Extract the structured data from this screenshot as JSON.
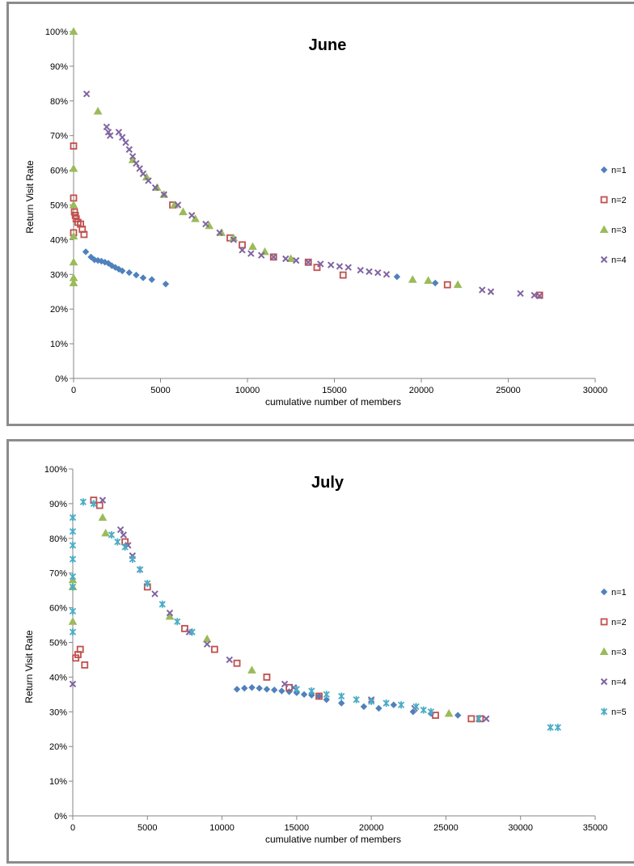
{
  "chart_data": [
    {
      "type": "scatter",
      "title": "June",
      "xlabel": "cumulative  number  of  members",
      "ylabel": "Return Visit Rate",
      "xlim": [
        0,
        30000
      ],
      "ylim": [
        0,
        100
      ],
      "x_ticks": [
        "0",
        "5000",
        "10000",
        "15000",
        "20000",
        "25000",
        "30000"
      ],
      "y_ticks": [
        "0%",
        "10%",
        "20%",
        "30%",
        "40%",
        "50%",
        "60%",
        "70%",
        "80%",
        "90%",
        "100%"
      ],
      "grid": false,
      "legend_position": "right",
      "series": [
        {
          "name": "n=1",
          "color": "#4f81bd",
          "marker": "diamond",
          "points": [
            [
              700,
              36.5
            ],
            [
              1000,
              35
            ],
            [
              1200,
              34.2
            ],
            [
              1400,
              34
            ],
            [
              1600,
              33.8
            ],
            [
              1800,
              33.5
            ],
            [
              2000,
              33.2
            ],
            [
              2200,
              32.5
            ],
            [
              2400,
              32
            ],
            [
              2600,
              31.5
            ],
            [
              2800,
              31
            ],
            [
              3200,
              30.5
            ],
            [
              3600,
              29.8
            ],
            [
              4000,
              29
            ],
            [
              4500,
              28.5
            ],
            [
              5300,
              27.2
            ],
            [
              18600,
              29.3
            ],
            [
              20800,
              27.5
            ]
          ]
        },
        {
          "name": "n=2",
          "color": "#c0504d",
          "marker": "square",
          "points": [
            [
              0,
              67
            ],
            [
              0,
              52
            ],
            [
              50,
              48
            ],
            [
              100,
              47
            ],
            [
              150,
              46
            ],
            [
              250,
              45
            ],
            [
              400,
              44.5
            ],
            [
              500,
              43
            ],
            [
              0,
              42
            ],
            [
              600,
              41.5
            ],
            [
              5700,
              50
            ],
            [
              9000,
              40.5
            ],
            [
              9700,
              38.5
            ],
            [
              11500,
              35
            ],
            [
              13500,
              33.5
            ],
            [
              14000,
              32
            ],
            [
              15500,
              29.8
            ],
            [
              21500,
              27
            ],
            [
              26800,
              24
            ]
          ]
        },
        {
          "name": "n=3",
          "color": "#9bbb59",
          "marker": "triangle",
          "points": [
            [
              0,
              100
            ],
            [
              0,
              60.5
            ],
            [
              0,
              50
            ],
            [
              0,
              41
            ],
            [
              0,
              33.5
            ],
            [
              0,
              29
            ],
            [
              0,
              27.5
            ],
            [
              1400,
              77
            ],
            [
              3400,
              63
            ],
            [
              4200,
              58
            ],
            [
              4800,
              55
            ],
            [
              5200,
              53
            ],
            [
              5800,
              50
            ],
            [
              6300,
              48
            ],
            [
              7000,
              46
            ],
            [
              7800,
              44
            ],
            [
              8500,
              42
            ],
            [
              9200,
              40.5
            ],
            [
              10300,
              38
            ],
            [
              11000,
              36.5
            ],
            [
              12500,
              34.5
            ],
            [
              19500,
              28.5
            ],
            [
              20400,
              28.2
            ],
            [
              22100,
              27
            ]
          ]
        },
        {
          "name": "n=4",
          "color": "#8064a2",
          "marker": "x",
          "points": [
            [
              750,
              82
            ],
            [
              1900,
              72.5
            ],
            [
              2000,
              71
            ],
            [
              2100,
              70
            ],
            [
              2600,
              71
            ],
            [
              2800,
              69.5
            ],
            [
              3000,
              68
            ],
            [
              3200,
              66
            ],
            [
              3400,
              64
            ],
            [
              3600,
              62
            ],
            [
              3800,
              60.5
            ],
            [
              4000,
              59
            ],
            [
              4300,
              57
            ],
            [
              4700,
              55
            ],
            [
              5200,
              53
            ],
            [
              6000,
              50
            ],
            [
              6800,
              47
            ],
            [
              7600,
              44.5
            ],
            [
              8400,
              42
            ],
            [
              9200,
              40
            ],
            [
              9700,
              37
            ],
            [
              10200,
              36
            ],
            [
              10800,
              35.5
            ],
            [
              11500,
              35
            ],
            [
              12200,
              34.5
            ],
            [
              12800,
              34
            ],
            [
              13500,
              33.5
            ],
            [
              14200,
              33
            ],
            [
              14800,
              32.7
            ],
            [
              15300,
              32.3
            ],
            [
              15800,
              32
            ],
            [
              16500,
              31.2
            ],
            [
              17000,
              30.8
            ],
            [
              17500,
              30.5
            ],
            [
              18000,
              30
            ],
            [
              23500,
              25.5
            ],
            [
              24000,
              25
            ],
            [
              25700,
              24.5
            ],
            [
              26500,
              24
            ],
            [
              26800,
              23.8
            ]
          ]
        }
      ]
    },
    {
      "type": "scatter",
      "title": "July",
      "xlabel": "cumulative  number  of  members",
      "ylabel": "Return Visit Rate",
      "xlim": [
        0,
        35000
      ],
      "ylim": [
        0,
        100
      ],
      "x_ticks": [
        "0",
        "5000",
        "10000",
        "15000",
        "20000",
        "25000",
        "30000",
        "35000"
      ],
      "y_ticks": [
        "0%",
        "10%",
        "20%",
        "30%",
        "40%",
        "50%",
        "60%",
        "70%",
        "80%",
        "90%",
        "100%"
      ],
      "grid": false,
      "legend_position": "right",
      "series": [
        {
          "name": "n=1",
          "color": "#4f81bd",
          "marker": "diamond",
          "points": [
            [
              11000,
              36.5
            ],
            [
              11500,
              36.8
            ],
            [
              12000,
              37
            ],
            [
              12500,
              36.8
            ],
            [
              13000,
              36.5
            ],
            [
              13500,
              36.3
            ],
            [
              14000,
              36
            ],
            [
              14500,
              35.8
            ],
            [
              15000,
              35.5
            ],
            [
              15500,
              35
            ],
            [
              16000,
              34.8
            ],
            [
              16500,
              34.5
            ],
            [
              17000,
              33.5
            ],
            [
              18000,
              32.5
            ],
            [
              19500,
              31.5
            ],
            [
              20500,
              31
            ],
            [
              21500,
              32
            ],
            [
              22800,
              30
            ],
            [
              24000,
              29.5
            ],
            [
              25800,
              29
            ]
          ]
        },
        {
          "name": "n=2",
          "color": "#c0504d",
          "marker": "square",
          "points": [
            [
              200,
              45.5
            ],
            [
              350,
              46.5
            ],
            [
              500,
              48
            ],
            [
              800,
              43.5
            ],
            [
              1400,
              91
            ],
            [
              1800,
              89.5
            ],
            [
              3500,
              79
            ],
            [
              5000,
              66
            ],
            [
              7500,
              54
            ],
            [
              9500,
              48
            ],
            [
              11000,
              44
            ],
            [
              13000,
              40
            ],
            [
              14500,
              37
            ],
            [
              16500,
              34.5
            ],
            [
              24300,
              29
            ],
            [
              26700,
              28
            ],
            [
              27300,
              28
            ]
          ]
        },
        {
          "name": "n=3",
          "color": "#9bbb59",
          "marker": "triangle",
          "points": [
            [
              0,
              68
            ],
            [
              0,
              66
            ],
            [
              0,
              56
            ],
            [
              2000,
              86
            ],
            [
              2200,
              81.5
            ],
            [
              6500,
              57.5
            ],
            [
              9000,
              51
            ],
            [
              12000,
              42
            ],
            [
              25200,
              29.5
            ]
          ]
        },
        {
          "name": "n=4",
          "color": "#8064a2",
          "marker": "x",
          "points": [
            [
              0,
              38
            ],
            [
              2000,
              91
            ],
            [
              3200,
              82.5
            ],
            [
              3400,
              81
            ],
            [
              3700,
              78
            ],
            [
              4000,
              75
            ],
            [
              4500,
              71
            ],
            [
              5500,
              64
            ],
            [
              6500,
              58.5
            ],
            [
              7800,
              53
            ],
            [
              9000,
              49.5
            ],
            [
              10500,
              45
            ],
            [
              14200,
              38
            ],
            [
              14800,
              37
            ],
            [
              20000,
              33.5
            ],
            [
              22900,
              31
            ],
            [
              27700,
              28
            ]
          ]
        },
        {
          "name": "n=5",
          "color": "#4bacc6",
          "marker": "star",
          "points": [
            [
              0,
              86
            ],
            [
              0,
              82
            ],
            [
              0,
              78
            ],
            [
              0,
              74
            ],
            [
              0,
              69
            ],
            [
              0,
              66
            ],
            [
              0,
              59
            ],
            [
              0,
              53
            ],
            [
              700,
              90.5
            ],
            [
              1400,
              90
            ],
            [
              2600,
              81
            ],
            [
              3000,
              79
            ],
            [
              3500,
              77.5
            ],
            [
              4000,
              74
            ],
            [
              4500,
              71
            ],
            [
              5000,
              67
            ],
            [
              6000,
              61
            ],
            [
              7000,
              56
            ],
            [
              8000,
              53
            ],
            [
              15000,
              36.5
            ],
            [
              16000,
              36
            ],
            [
              17000,
              35
            ],
            [
              18000,
              34.5
            ],
            [
              19000,
              33.5
            ],
            [
              20000,
              33
            ],
            [
              21000,
              32.5
            ],
            [
              22000,
              32
            ],
            [
              23000,
              31.5
            ],
            [
              23500,
              30.5
            ],
            [
              24000,
              30
            ],
            [
              27200,
              28
            ],
            [
              32000,
              25.5
            ],
            [
              32500,
              25.5
            ]
          ]
        }
      ]
    }
  ]
}
